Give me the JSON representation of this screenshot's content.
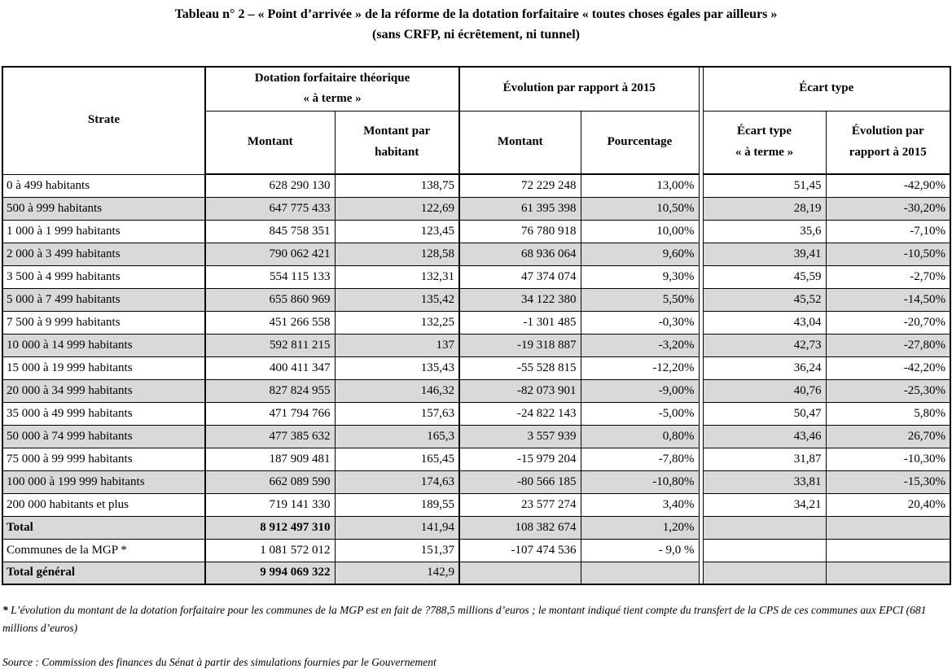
{
  "title": {
    "line1": "Tableau n° 2 – « Point d’arrivée » de la réforme de la dotation forfaitaire « toutes choses égales par ailleurs »",
    "line2": "(sans CRFP, ni écrêtement, ni tunnel)"
  },
  "table": {
    "header": {
      "strate": "Strate",
      "group_dotation": "Dotation forfaitaire théorique\n« à terme »",
      "group_evolution": "Évolution par rapport à 2015",
      "group_ecart": "Écart type",
      "sub": [
        "Montant",
        "Montant par\nhabitant",
        "Montant",
        "Pourcentage",
        "Écart type\n« à terme »",
        "Évolution par\nrapport à 2015"
      ]
    },
    "rows": [
      {
        "strate": "0 à 499 habitants",
        "values": [
          "628 290 130",
          "138,75",
          "72 229 248",
          "13,00%",
          "51,45",
          "-42,90%"
        ],
        "shaded": false,
        "bold": false
      },
      {
        "strate": "500 à 999 habitants",
        "values": [
          "647 775 433",
          "122,69",
          "61 395 398",
          "10,50%",
          "28,19",
          "-30,20%"
        ],
        "shaded": true,
        "bold": false
      },
      {
        "strate": "1 000 à 1 999 habitants",
        "values": [
          "845 758 351",
          "123,45",
          "76 780 918",
          "10,00%",
          "35,6",
          "-7,10%"
        ],
        "shaded": false,
        "bold": false
      },
      {
        "strate": "2 000 à 3 499 habitants",
        "values": [
          "790 062 421",
          "128,58",
          "68 936 064",
          "9,60%",
          "39,41",
          "-10,50%"
        ],
        "shaded": true,
        "bold": false
      },
      {
        "strate": "3 500 à 4 999 habitants",
        "values": [
          "554 115 133",
          "132,31",
          "47 374 074",
          "9,30%",
          "45,59",
          "-2,70%"
        ],
        "shaded": false,
        "bold": false
      },
      {
        "strate": "5 000 à 7 499 habitants",
        "values": [
          "655 860 969",
          "135,42",
          "34 122 380",
          "5,50%",
          "45,52",
          "-14,50%"
        ],
        "shaded": true,
        "bold": false
      },
      {
        "strate": "7 500 à 9 999 habitants",
        "values": [
          "451 266 558",
          "132,25",
          "-1 301 485",
          "-0,30%",
          "43,04",
          "-20,70%"
        ],
        "shaded": false,
        "bold": false
      },
      {
        "strate": "10 000 à 14 999 habitants",
        "values": [
          "592 811 215",
          "137",
          "-19 318 887",
          "-3,20%",
          "42,73",
          "-27,80%"
        ],
        "shaded": true,
        "bold": false
      },
      {
        "strate": "15 000 à 19 999 habitants",
        "values": [
          "400 411 347",
          "135,43",
          "-55 528 815",
          "-12,20%",
          "36,24",
          "-42,20%"
        ],
        "shaded": false,
        "bold": false
      },
      {
        "strate": "20 000 à 34 999 habitants",
        "values": [
          "827 824 955",
          "146,32",
          "-82 073 901",
          "-9,00%",
          "40,76",
          "-25,30%"
        ],
        "shaded": true,
        "bold": false
      },
      {
        "strate": "35 000 à 49 999 habitants",
        "values": [
          "471 794 766",
          "157,63",
          "-24 822 143",
          "-5,00%",
          "50,47",
          "5,80%"
        ],
        "shaded": false,
        "bold": false
      },
      {
        "strate": "50 000 à 74 999 habitants",
        "values": [
          "477 385 632",
          "165,3",
          "3 557 939",
          "0,80%",
          "43,46",
          "26,70%"
        ],
        "shaded": true,
        "bold": false
      },
      {
        "strate": "75 000 à 99 999 habitants",
        "values": [
          "187 909 481",
          "165,45",
          "-15 979 204",
          "-7,80%",
          "31,87",
          "-10,30%"
        ],
        "shaded": false,
        "bold": false
      },
      {
        "strate": "100 000 à 199 999 habitants",
        "values": [
          "662 089 590",
          "174,63",
          "-80 566 185",
          "-10,80%",
          "33,81",
          "-15,30%"
        ],
        "shaded": true,
        "bold": false
      },
      {
        "strate": "200 000 habitants et plus",
        "values": [
          "719 141 330",
          "189,55",
          "23 577 274",
          "3,40%",
          "34,21",
          "20,40%"
        ],
        "shaded": false,
        "bold": false
      },
      {
        "strate": "Total",
        "values": [
          "8 912 497 310",
          "141,94",
          "108 382 674",
          "1,20%",
          "",
          ""
        ],
        "shaded": true,
        "bold": true
      },
      {
        "strate": "Communes de la MGP *",
        "values": [
          "1 081 572 012",
          "151,37",
          "-107 474 536",
          "- 9,0 %",
          "",
          ""
        ],
        "shaded": false,
        "bold": false
      },
      {
        "strate": "Total général",
        "values": [
          "9 994 069 322",
          "142,9",
          "",
          "",
          "",
          ""
        ],
        "shaded": true,
        "bold": true
      }
    ]
  },
  "footnotes": {
    "marker": "*",
    "note": "L’évolution du montant de la dotation forfaitaire pour les communes de la MGP est en fait de ?788,5 millions d’euros ; le montant indiqué tient compte du transfert de la CPS de ces communes aux EPCI (681 millions d’euros)",
    "source": "Source : Commission des finances du Sénat à partir des simulations fournies par le Gouvernement"
  }
}
